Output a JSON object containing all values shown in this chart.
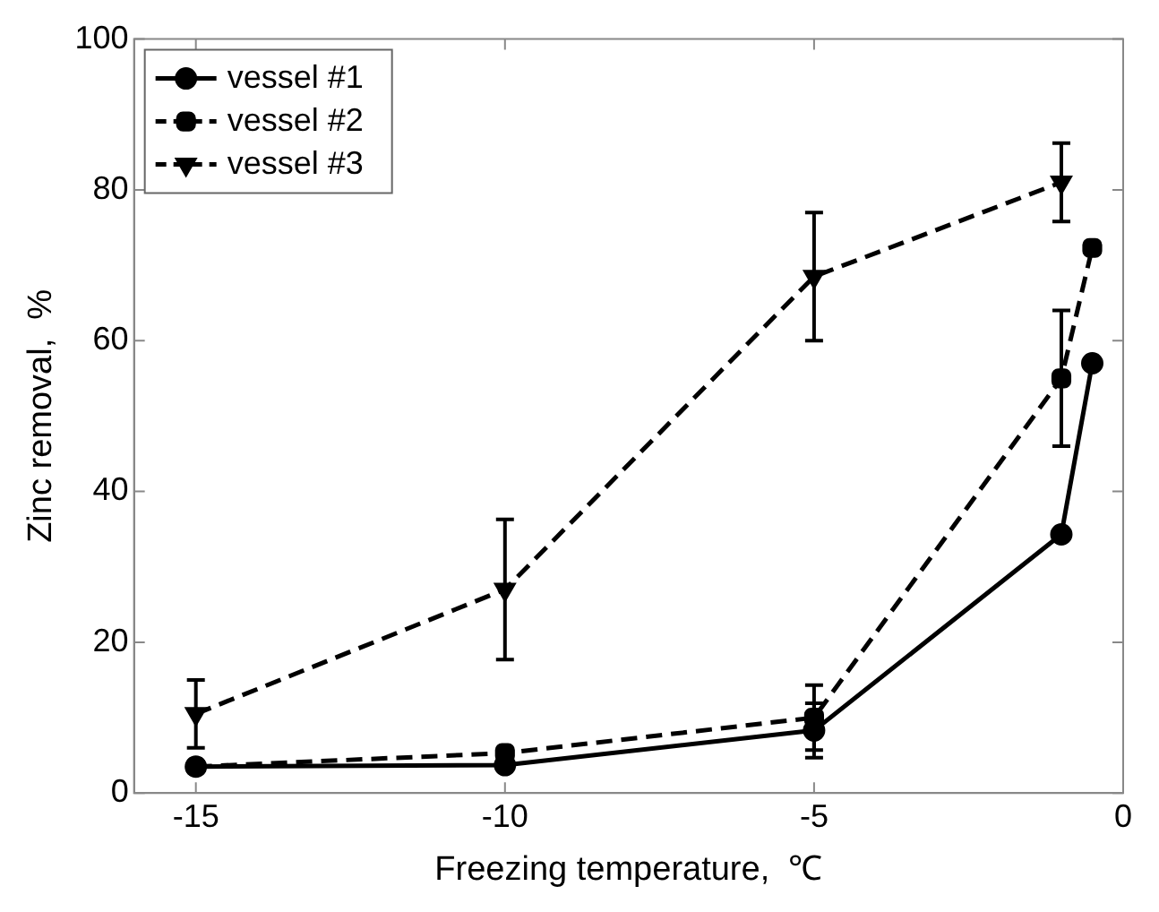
{
  "chart_data": {
    "type": "line",
    "xlabel": "Freezing temperature,  ℃",
    "ylabel": "Zinc removal,  %",
    "xlim": [
      -16,
      0
    ],
    "xticks": [
      -15,
      -10,
      -5,
      0
    ],
    "ylim": [
      0,
      100
    ],
    "yticks": [
      0,
      20,
      40,
      60,
      80,
      100
    ],
    "grid": false,
    "legend": "top left",
    "series": [
      {
        "name": "vessel #1",
        "color": "#000000",
        "marker": "circle",
        "line_style": "solid",
        "x": [
          -15,
          -10,
          -5,
          -1,
          -0.5
        ],
        "values": [
          3.5,
          3.7,
          8.3,
          34.3,
          57
        ],
        "errors": [
          null,
          null,
          3.6,
          null,
          null
        ]
      },
      {
        "name": "vessel #2",
        "color": "#000000",
        "marker": "square",
        "line_style": "dashed",
        "x": [
          -15,
          -10,
          -5,
          -1,
          -0.5
        ],
        "values": [
          3.5,
          5.3,
          10,
          55,
          72.3
        ],
        "errors": [
          null,
          null,
          4.3,
          9,
          null
        ]
      },
      {
        "name": "vessel #3",
        "color": "#000000",
        "marker": "triangle",
        "line_style": "dashed",
        "x": [
          -15,
          -10,
          -5,
          -1
        ],
        "values": [
          10.5,
          27,
          68.5,
          81
        ],
        "errors": [
          4.5,
          9.3,
          8.5,
          5.2
        ]
      }
    ]
  }
}
